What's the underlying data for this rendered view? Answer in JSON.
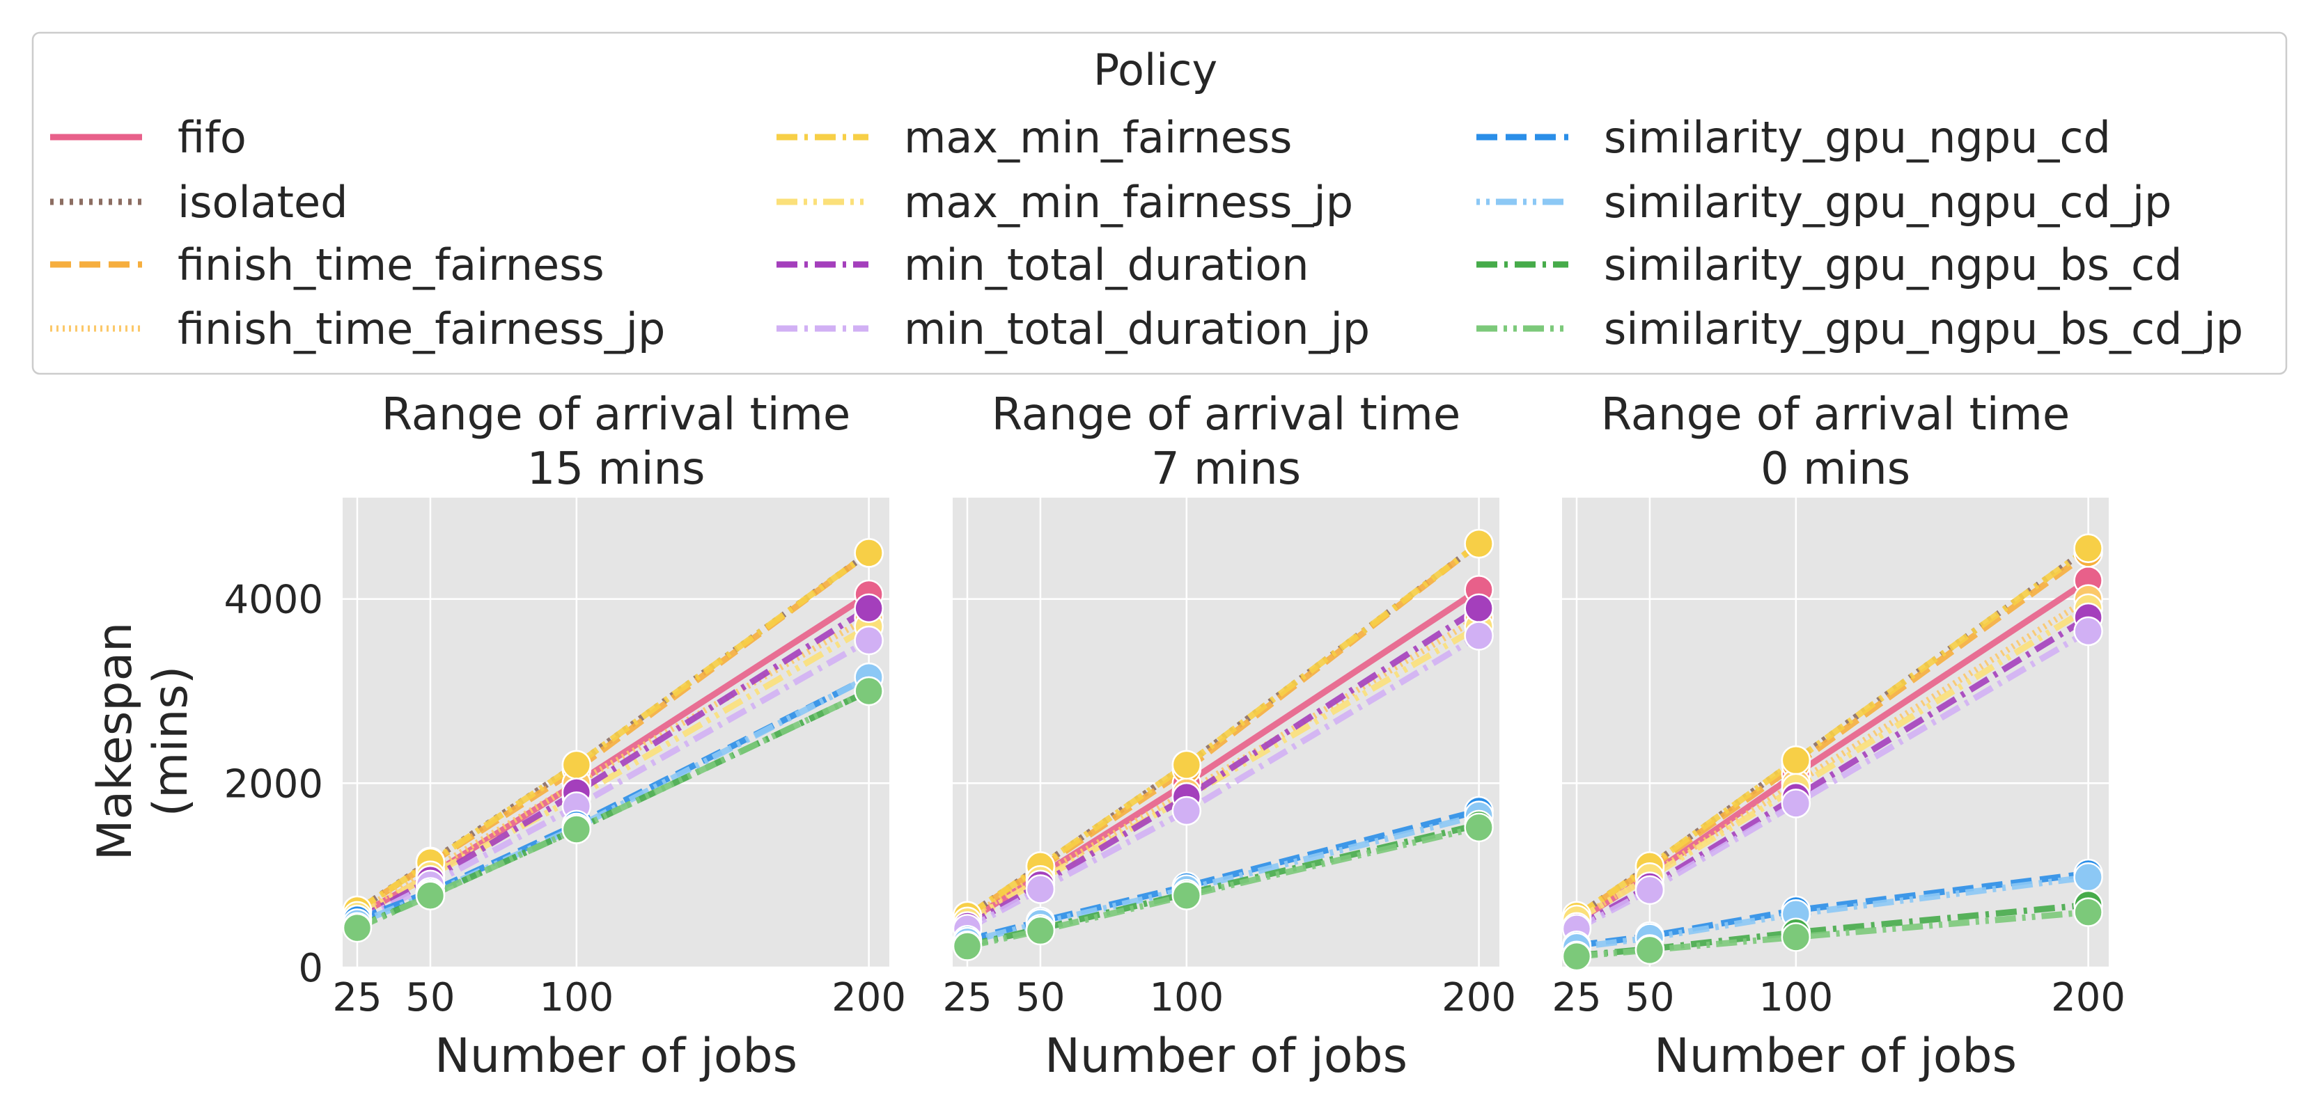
{
  "chart_data": {
    "type": "line",
    "legend": {
      "title": "Policy",
      "placement": "top",
      "entries": [
        {
          "name": "fifo",
          "color": "#e8608a",
          "dash": "solid"
        },
        {
          "name": "isolated",
          "color": "#8c6d62",
          "dash": "dot"
        },
        {
          "name": "finish_time_fairness",
          "color": "#f6ae3e",
          "dash": "dash"
        },
        {
          "name": "finish_time_fairness_jp",
          "color": "#fbc86a",
          "dash": "fine-dot"
        },
        {
          "name": "max_min_fairness",
          "color": "#f7cf47",
          "dash": "dashdot"
        },
        {
          "name": "max_min_fairness_jp",
          "color": "#fbe07a",
          "dash": "dashdotdot"
        },
        {
          "name": "min_total_duration",
          "color": "#a43fbc",
          "dash": "dashdot"
        },
        {
          "name": "min_total_duration_jp",
          "color": "#d1b0f4",
          "dash": "dashdot"
        },
        {
          "name": "similarity_gpu_ngpu_cd",
          "color": "#2a8ee8",
          "dash": "dash"
        },
        {
          "name": "similarity_gpu_ngpu_cd_jp",
          "color": "#8cc8f5",
          "dash": "dotdash"
        },
        {
          "name": "similarity_gpu_ngpu_bs_cd",
          "color": "#46ab4a",
          "dash": "dashdot"
        },
        {
          "name": "similarity_gpu_ngpu_bs_cd_jp",
          "color": "#7cc97a",
          "dash": "dashdotdot"
        }
      ]
    },
    "x": [
      25,
      50,
      100,
      200
    ],
    "xlabel": "Number of jobs",
    "ylabel_lines": [
      "Makespan",
      "(mins)"
    ],
    "xlim": [
      20,
      207
    ],
    "ylim": [
      0,
      5100
    ],
    "yticks": [
      0,
      2000,
      4000
    ],
    "xticks": [
      25,
      50,
      100,
      200
    ],
    "grid": true,
    "panels": [
      {
        "title_lines": [
          "Range of arrival time",
          "15 mins"
        ],
        "series": {
          "fifo": [
            560,
            1000,
            2000,
            4050
          ],
          "isolated": [
            620,
            1150,
            2200,
            4500
          ],
          "finish_time_fairness": [
            620,
            1130,
            2150,
            4500
          ],
          "finish_time_fairness_jp": [
            600,
            1050,
            2000,
            3800
          ],
          "max_min_fairness": [
            620,
            1140,
            2200,
            4500
          ],
          "max_min_fairness_jp": [
            560,
            1000,
            1850,
            3700
          ],
          "min_total_duration": [
            520,
            950,
            1900,
            3900
          ],
          "min_total_duration_jp": [
            500,
            900,
            1750,
            3550
          ],
          "similarity_gpu_ngpu_cd": [
            520,
            820,
            1550,
            3150
          ],
          "similarity_gpu_ngpu_cd_jp": [
            480,
            800,
            1520,
            3150
          ],
          "similarity_gpu_ngpu_bs_cd": [
            440,
            780,
            1500,
            3000
          ],
          "similarity_gpu_ngpu_bs_cd_jp": [
            430,
            780,
            1500,
            3000
          ]
        }
      },
      {
        "title_lines": [
          "Range of arrival time",
          "7 mins"
        ],
        "series": {
          "fifo": [
            500,
            1000,
            2000,
            4100
          ],
          "isolated": [
            560,
            1100,
            2200,
            4600
          ],
          "finish_time_fairness": [
            560,
            1080,
            2150,
            4600
          ],
          "finish_time_fairness_jp": [
            540,
            1000,
            1900,
            3800
          ],
          "max_min_fairness": [
            560,
            1100,
            2200,
            4600
          ],
          "max_min_fairness_jp": [
            500,
            950,
            1850,
            3700
          ],
          "min_total_duration": [
            450,
            900,
            1850,
            3900
          ],
          "min_total_duration_jp": [
            420,
            850,
            1700,
            3600
          ],
          "similarity_gpu_ngpu_cd": [
            300,
            500,
            880,
            1700
          ],
          "similarity_gpu_ngpu_cd_jp": [
            280,
            480,
            850,
            1650
          ],
          "similarity_gpu_ngpu_bs_cd": [
            240,
            420,
            800,
            1550
          ],
          "similarity_gpu_ngpu_bs_cd_jp": [
            230,
            400,
            780,
            1520
          ]
        }
      },
      {
        "title_lines": [
          "Range of arrival time",
          "0 mins"
        ],
        "series": {
          "fifo": [
            500,
            1000,
            2100,
            4200
          ],
          "isolated": [
            560,
            1100,
            2250,
            4550
          ],
          "finish_time_fairness": [
            560,
            1080,
            2200,
            4500
          ],
          "finish_time_fairness_jp": [
            520,
            1000,
            2000,
            4000
          ],
          "max_min_fairness": [
            560,
            1100,
            2250,
            4550
          ],
          "max_min_fairness_jp": [
            520,
            980,
            1950,
            3900
          ],
          "min_total_duration": [
            440,
            880,
            1850,
            3800
          ],
          "min_total_duration_jp": [
            420,
            840,
            1780,
            3650
          ],
          "similarity_gpu_ngpu_cd": [
            240,
            340,
            620,
            1020
          ],
          "similarity_gpu_ngpu_cd_jp": [
            220,
            320,
            580,
            980
          ],
          "similarity_gpu_ngpu_bs_cd": [
            130,
            200,
            380,
            680
          ],
          "similarity_gpu_ngpu_bs_cd_jp": [
            120,
            190,
            330,
            600
          ]
        }
      }
    ]
  }
}
